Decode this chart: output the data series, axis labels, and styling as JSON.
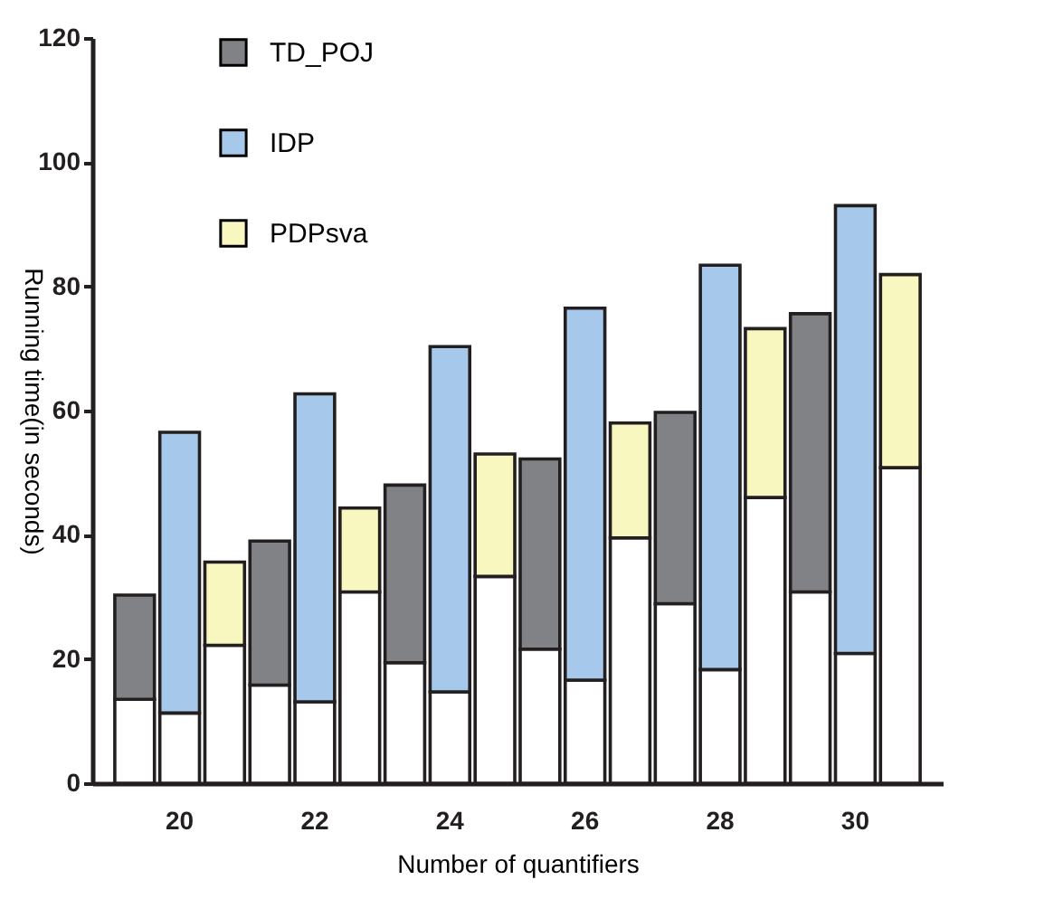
{
  "chart_data": {
    "type": "bar",
    "stacked": true,
    "xlabel": "Number of quantifiers",
    "ylabel": "Running time(in seconds)",
    "categories": [
      null,
      "20",
      null,
      null,
      "22",
      null,
      null,
      "24",
      null,
      null,
      "26",
      null,
      null,
      "28",
      null,
      null,
      "30",
      null
    ],
    "series": [
      {
        "color": "#ffffff",
        "values": [
          13.5,
          11.3,
          22.2,
          15.8,
          13.1,
          30.8,
          19.4,
          14.7,
          33.3,
          21.6,
          16.6,
          39.5,
          28.9,
          18.3,
          46,
          30.8,
          20.9,
          50.8
        ]
      },
      {
        "name": "TD_POJ",
        "color": "#808285",
        "values": [
          16.8,
          null,
          null,
          23.2,
          null,
          null,
          28.6,
          null,
          null,
          30.6,
          null,
          null,
          30.8,
          null,
          null,
          44.8,
          null,
          null
        ]
      },
      {
        "name": "IDP",
        "color": "#a6c8ea",
        "values": [
          null,
          45.2,
          null,
          null,
          49.6,
          null,
          null,
          55.6,
          null,
          null,
          59.9,
          null,
          null,
          65.1,
          null,
          null,
          72.1,
          null
        ]
      },
      {
        "name": "PDPsva",
        "color": "#f9f7c0",
        "values": [
          null,
          null,
          13.4,
          null,
          null,
          13.5,
          null,
          null,
          19.7,
          null,
          null,
          18.5,
          null,
          null,
          27.2,
          null,
          null,
          31.1
        ]
      }
    ],
    "ylim": [
      0,
      120
    ],
    "yticks": [
      0,
      20,
      40,
      60,
      80,
      100,
      120
    ],
    "grid": false,
    "legend": "top left"
  }
}
